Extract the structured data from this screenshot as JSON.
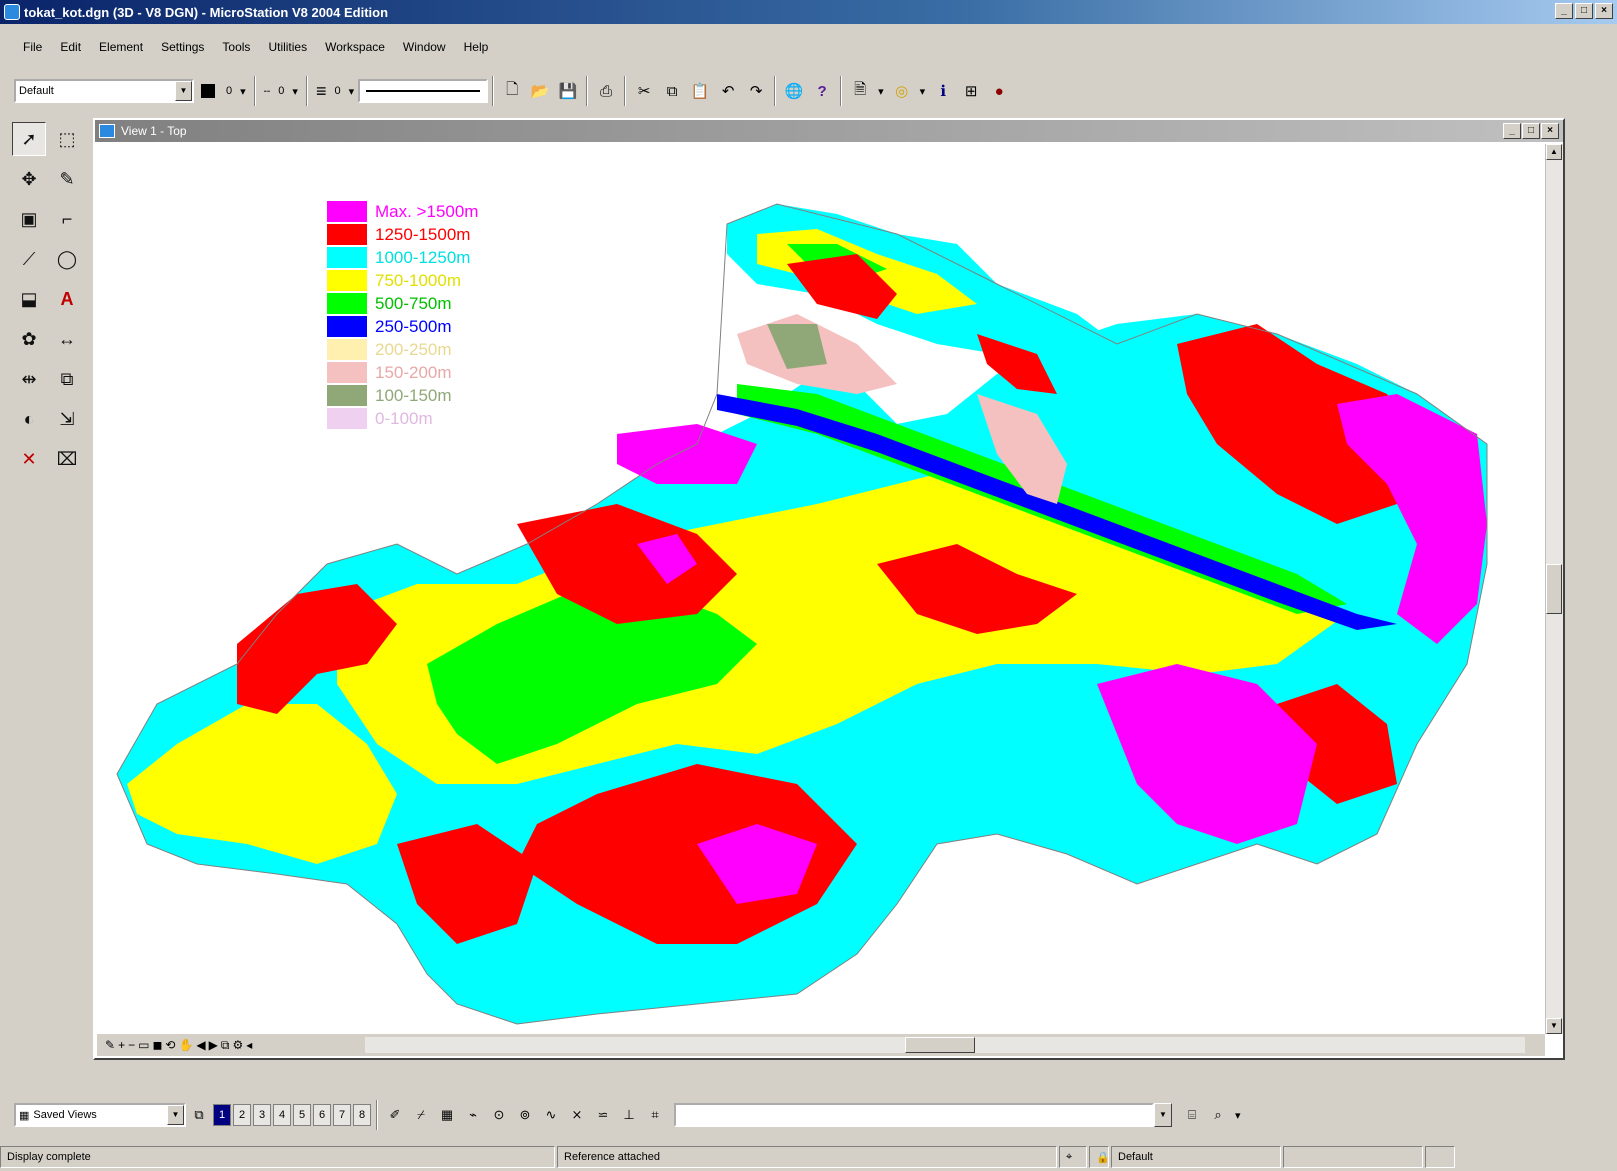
{
  "window": {
    "title": "tokat_kot.dgn (3D - V8 DGN) - MicroStation V8 2004 Edition",
    "controls": [
      "_",
      "□",
      "×"
    ]
  },
  "menu": [
    "File",
    "Edit",
    "Element",
    "Settings",
    "Tools",
    "Utilities",
    "Workspace",
    "Window",
    "Help"
  ],
  "toolbar": {
    "level_combo": "Default",
    "color_label": "",
    "weight_value": "0",
    "linestyle_value": "0",
    "lineweight_value": "0"
  },
  "view": {
    "title": "View 1 - Top",
    "controls": [
      "_",
      "□",
      "×"
    ]
  },
  "legend": [
    {
      "label": "Max. >1500m",
      "color": "#ff00ff"
    },
    {
      "label": "1250-1500m",
      "color": "#ff0000"
    },
    {
      "label": "1000-1250m",
      "color": "#00ffff"
    },
    {
      "label": "750-1000m",
      "color": "#ffff00"
    },
    {
      "label": "500-750m",
      "color": "#00ff00"
    },
    {
      "label": "250-500m",
      "color": "#0000ff"
    },
    {
      "label": "200-250m",
      "color": "#fff0b0"
    },
    {
      "label": "150-200m",
      "color": "#f4c0c0"
    },
    {
      "label": "100-150m",
      "color": "#90a878"
    },
    {
      "label": "0-100m",
      "color": "#f0d0f0"
    }
  ],
  "bottom_toolbar": {
    "views_combo": "Saved Views",
    "view_numbers": [
      "1",
      "2",
      "3",
      "4",
      "5",
      "6",
      "7",
      "8"
    ],
    "keyin_value": ""
  },
  "status": {
    "left": "Display complete",
    "middle": "Reference attached",
    "right": "Default"
  }
}
